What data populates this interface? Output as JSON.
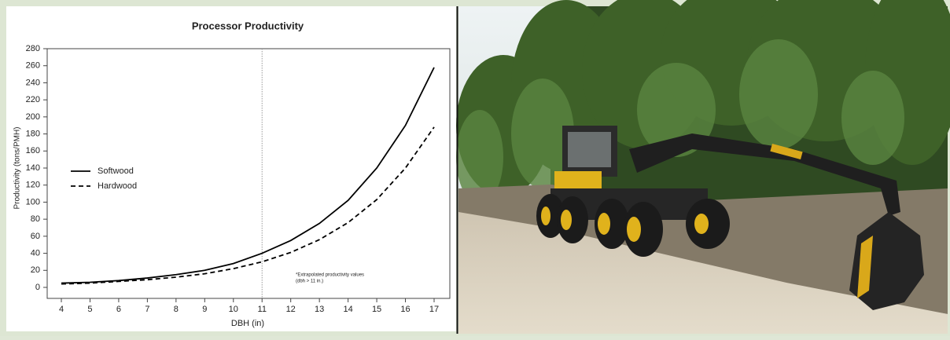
{
  "chart_data": {
    "type": "line",
    "title": "Processor Productivity",
    "xlabel": "DBH (in)",
    "ylabel": "Productivity (tons/PMH)",
    "x": [
      4,
      5,
      6,
      7,
      8,
      9,
      10,
      11,
      12,
      13,
      14,
      15,
      16,
      17
    ],
    "series": [
      {
        "name": "Softwood",
        "color": "#000000",
        "style": "solid",
        "values": [
          5,
          6,
          8,
          11,
          15,
          20,
          28,
          40,
          55,
          75,
          102,
          140,
          190,
          258
        ]
      },
      {
        "name": "Hardwood",
        "color": "#000000",
        "style": "dashed",
        "values": [
          4,
          5,
          7,
          9,
          12,
          16,
          22,
          30,
          41,
          56,
          76,
          103,
          140,
          188
        ]
      }
    ],
    "xlim": [
      4,
      17
    ],
    "ylim": [
      0,
      280
    ],
    "xticks": [
      4,
      5,
      6,
      7,
      8,
      9,
      10,
      11,
      12,
      13,
      14,
      15,
      16,
      17
    ],
    "yticks": [
      0,
      20,
      40,
      60,
      80,
      100,
      120,
      140,
      160,
      180,
      200,
      220,
      240,
      260,
      280
    ],
    "vline": 11,
    "annotation": [
      "*Extrapolated productivity values",
      "(dbh > 11 in.)"
    ],
    "legend": "left"
  }
}
